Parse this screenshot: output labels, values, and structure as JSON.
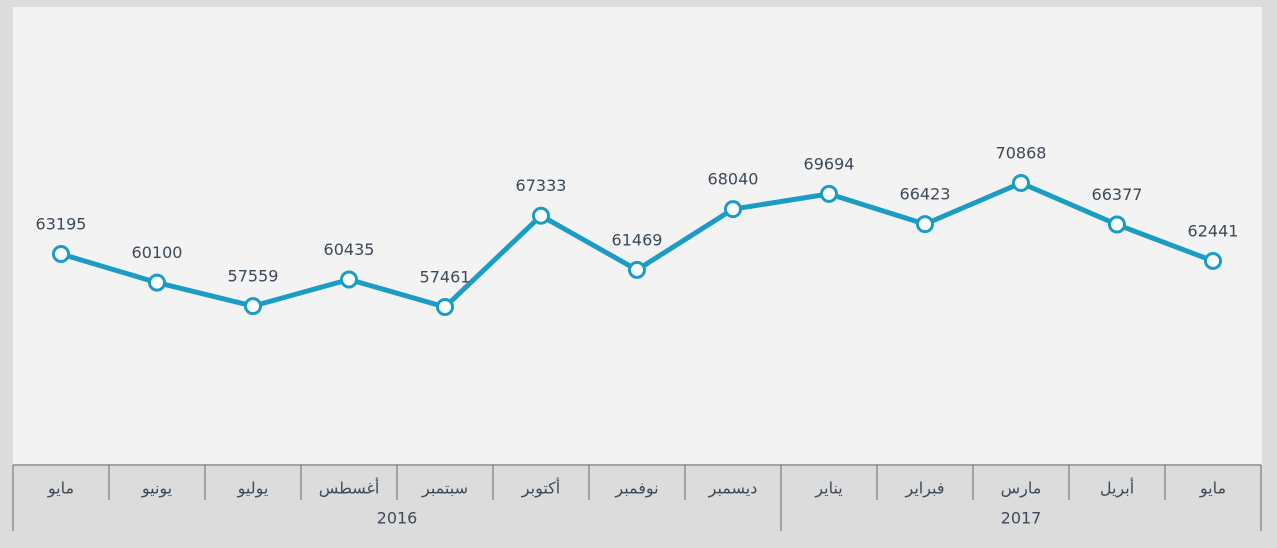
{
  "chart_data": {
    "type": "line",
    "categories": [
      "مايو",
      "يونيو",
      "يوليو",
      "أغسطس",
      "سبتمبر",
      "أكتوبر",
      "نوفمبر",
      "ديسمبر",
      "يناير",
      "فبراير",
      "مارس",
      "أبريل",
      "مايو"
    ],
    "groups": [
      {
        "label": "2016",
        "count": 8
      },
      {
        "label": "2017",
        "count": 5
      }
    ],
    "series": [
      {
        "color": "#1b9cc5",
        "values": [
          63195,
          60100,
          57559,
          60435,
          57461,
          67333,
          61469,
          68040,
          69694,
          66423,
          70868,
          66377,
          62441
        ]
      }
    ]
  }
}
